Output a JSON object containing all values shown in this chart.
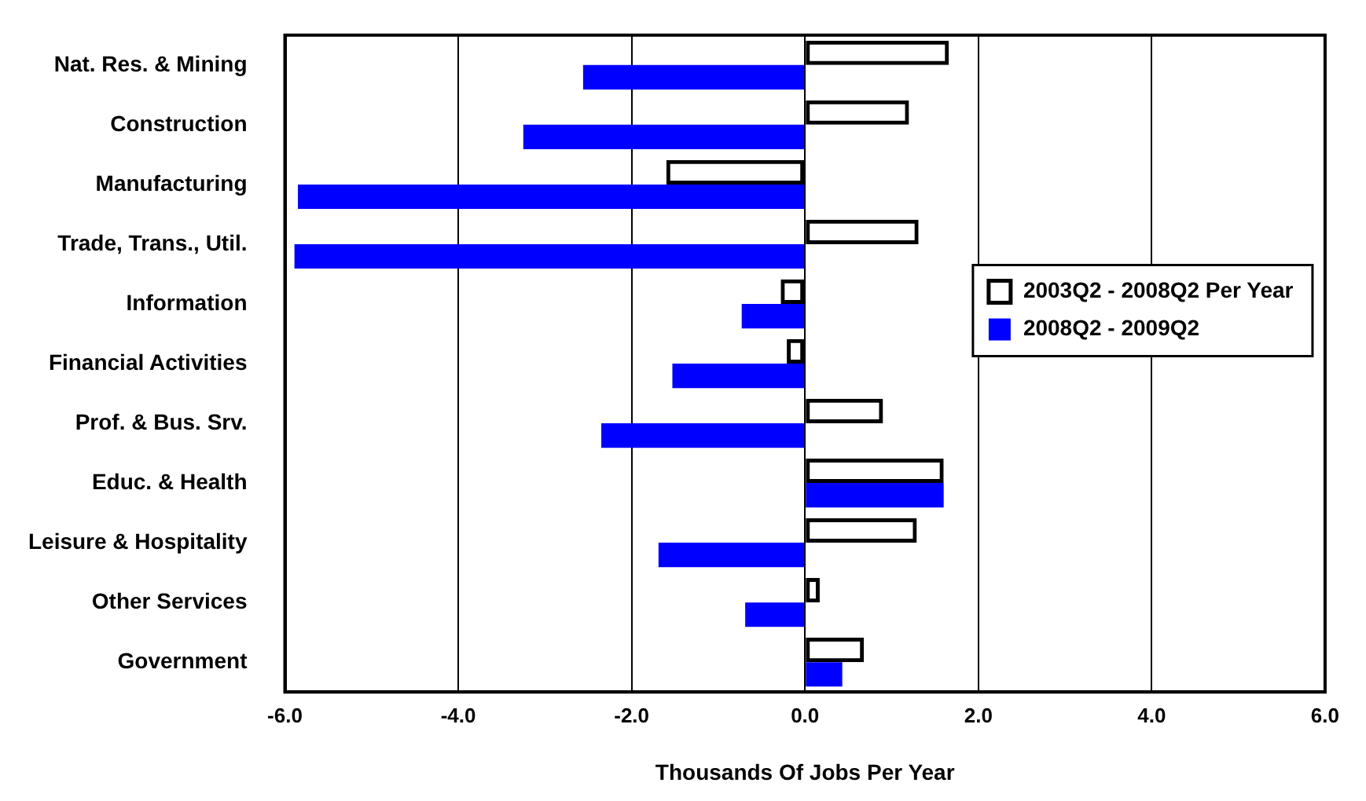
{
  "chart_data": {
    "type": "bar",
    "orientation": "horizontal",
    "xlabel": "Thousands Of Jobs Per Year",
    "categories": [
      "Nat. Res. & Mining",
      "Construction",
      "Manufacturing",
      "Trade, Trans., Util.",
      "Information",
      "Financial Activities",
      "Prof. & Bus. Srv.",
      "Educ. & Health",
      "Leisure & Hospitality",
      "Other Services",
      "Government"
    ],
    "series": [
      {
        "name": "2003Q2 - 2008Q2 Per Year",
        "color": "#000000",
        "values": [
          1.66,
          1.2,
          -1.6,
          1.31,
          -0.28,
          -0.21,
          0.9,
          1.6,
          1.29,
          0.17,
          0.68
        ]
      },
      {
        "name": "2008Q2 - 2009Q2",
        "color": "#0000ff",
        "values": [
          -2.56,
          -3.25,
          -5.85,
          -5.89,
          -0.73,
          -1.53,
          -2.35,
          1.6,
          -1.69,
          -0.69,
          0.43
        ]
      }
    ],
    "xlim": [
      -6,
      6
    ],
    "xticks": [
      {
        "value": -6,
        "label": "-6.0"
      },
      {
        "value": -4,
        "label": "-4.0"
      },
      {
        "value": -2,
        "label": "-2.0"
      },
      {
        "value": 0,
        "label": "0.0"
      },
      {
        "value": 2,
        "label": "2.0"
      },
      {
        "value": 4,
        "label": "4.0"
      },
      {
        "value": 6,
        "label": "6.0"
      }
    ],
    "grid": "x",
    "legend": "right"
  }
}
